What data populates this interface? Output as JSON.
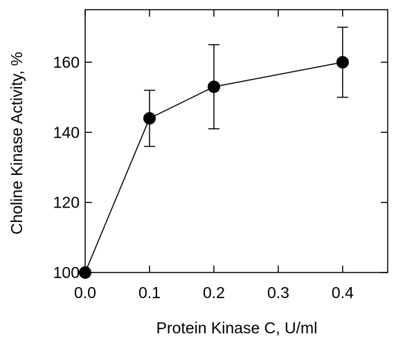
{
  "chart_data": {
    "type": "line",
    "title": "",
    "xlabel": "Protein Kinase C, U/ml",
    "ylabel": "Choline Kinase Activity, %",
    "xlim": [
      0.0,
      0.47
    ],
    "ylim": [
      100,
      175
    ],
    "xticks": [
      0.0,
      0.1,
      0.2,
      0.3,
      0.4
    ],
    "xtick_labels": [
      "0.0",
      "0.1",
      "0.2",
      "0.3",
      "0.4"
    ],
    "yticks": [
      100,
      120,
      140,
      160
    ],
    "ytick_labels": [
      "100",
      "120",
      "140",
      "160"
    ],
    "grid": false,
    "legend": "none",
    "series": [
      {
        "x": [
          0.0,
          0.1,
          0.2,
          0.4
        ],
        "y": [
          100,
          144,
          153,
          160
        ],
        "err": [
          0,
          8,
          12,
          10
        ],
        "marker": "filled-circle",
        "color": "#000000"
      }
    ]
  }
}
